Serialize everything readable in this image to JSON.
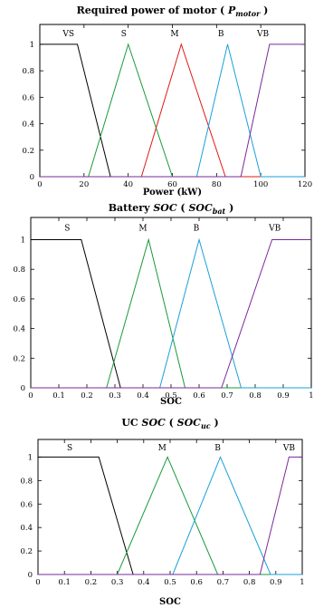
{
  "chart_data": [
    {
      "type": "line",
      "title": "Required power of motor (",
      "title_symbol": "P",
      "title_subscript": "motor",
      "title_close": ")",
      "xlabel": "Power (kW)",
      "xlim": [
        0,
        120
      ],
      "ylim": [
        0,
        1.15
      ],
      "xticks": [
        "0",
        "20",
        "40",
        "60",
        "80",
        "100",
        "120"
      ],
      "yticks": [
        "0",
        "0.2",
        "0.4",
        "0.6",
        "0.8",
        "1"
      ],
      "series": [
        {
          "name": "VS",
          "color": "#000000",
          "x": [
            0,
            17,
            32,
            120
          ],
          "y": [
            1,
            1,
            0,
            0
          ]
        },
        {
          "name": "S",
          "color": "#1a9a3a",
          "x": [
            0,
            22,
            40,
            60,
            120
          ],
          "y": [
            0,
            0,
            1,
            0,
            0
          ]
        },
        {
          "name": "M",
          "color": "#e01818",
          "x": [
            0,
            46,
            64,
            84,
            120
          ],
          "y": [
            0,
            0,
            1,
            0,
            0
          ]
        },
        {
          "name": "B",
          "color": "#1aa0d8",
          "x": [
            0,
            71,
            85,
            100,
            120
          ],
          "y": [
            0,
            0,
            1,
            0,
            0
          ]
        },
        {
          "name": "VB",
          "color": "#7a2a9a",
          "x": [
            0,
            91,
            104,
            120
          ],
          "y": [
            0,
            0,
            1,
            1
          ]
        }
      ],
      "labels": [
        {
          "text": "VS",
          "x": 13,
          "y": 1.08
        },
        {
          "text": "S",
          "x": 38,
          "y": 1.08
        },
        {
          "text": "M",
          "x": 61,
          "y": 1.08
        },
        {
          "text": "B",
          "x": 82,
          "y": 1.08
        },
        {
          "text": "VB",
          "x": 101,
          "y": 1.08
        }
      ]
    },
    {
      "type": "line",
      "title": "Battery",
      "title_symbol": "SOC",
      "title_paren": "(",
      "title_symbol2": "SOC",
      "title_subscript": "bat",
      "title_close": ")",
      "xlabel": "SOC",
      "xlim": [
        0,
        1
      ],
      "ylim": [
        0,
        1.15
      ],
      "xticks": [
        "0",
        "0.1",
        "0.2",
        "0.3",
        "0.4",
        "0.5",
        "0.6",
        "0.7",
        "0.8",
        "0.9",
        "1"
      ],
      "yticks": [
        "0",
        "0.2",
        "0.4",
        "0.6",
        "0.8",
        "1"
      ],
      "series": [
        {
          "name": "S",
          "color": "#000000",
          "x": [
            0,
            0.18,
            0.32,
            1
          ],
          "y": [
            1,
            1,
            0,
            0
          ]
        },
        {
          "name": "M",
          "color": "#1a9a3a",
          "x": [
            0,
            0.27,
            0.42,
            0.55,
            1
          ],
          "y": [
            0,
            0,
            1,
            0,
            0
          ]
        },
        {
          "name": "B",
          "color": "#1aa0d8",
          "x": [
            0,
            0.46,
            0.6,
            0.75,
            1
          ],
          "y": [
            0,
            0,
            1,
            0,
            0
          ]
        },
        {
          "name": "VB",
          "color": "#7a2a9a",
          "x": [
            0,
            0.68,
            0.86,
            1
          ],
          "y": [
            0,
            0,
            1,
            1
          ]
        }
      ],
      "labels": [
        {
          "text": "S",
          "x": 0.13,
          "y": 1.08
        },
        {
          "text": "M",
          "x": 0.4,
          "y": 1.08
        },
        {
          "text": "B",
          "x": 0.59,
          "y": 1.08
        },
        {
          "text": "VB",
          "x": 0.87,
          "y": 1.08
        }
      ]
    },
    {
      "type": "line",
      "title": "UC",
      "title_symbol": "SOC",
      "title_paren": "(",
      "title_symbol2": "SOC",
      "title_subscript": "uc",
      "title_close": ")",
      "xlabel": "SOC",
      "xlim": [
        0,
        1
      ],
      "ylim": [
        0,
        1.15
      ],
      "xticks": [
        "0",
        "0.1",
        "0.2",
        "0.3",
        "0.4",
        "0.5",
        "0.6",
        "0.7",
        "0.8",
        "0.9",
        "1"
      ],
      "yticks": [
        "0",
        "0.2",
        "0.4",
        "0.6",
        "0.8",
        "1"
      ],
      "series": [
        {
          "name": "S",
          "color": "#000000",
          "x": [
            0,
            0.23,
            0.36,
            1
          ],
          "y": [
            1,
            1,
            0,
            0
          ]
        },
        {
          "name": "M",
          "color": "#1a9a3a",
          "x": [
            0,
            0.3,
            0.49,
            0.68,
            1
          ],
          "y": [
            0,
            0,
            1,
            0,
            0
          ]
        },
        {
          "name": "B",
          "color": "#1aa0d8",
          "x": [
            0,
            0.51,
            0.69,
            0.88,
            1
          ],
          "y": [
            0,
            0,
            1,
            0,
            0
          ]
        },
        {
          "name": "VB",
          "color": "#7a2a9a",
          "x": [
            0,
            0.84,
            0.95,
            1
          ],
          "y": [
            0,
            0,
            1,
            1
          ]
        }
      ],
      "labels": [
        {
          "text": "S",
          "x": 0.12,
          "y": 1.08
        },
        {
          "text": "M",
          "x": 0.47,
          "y": 1.08
        },
        {
          "text": "B",
          "x": 0.68,
          "y": 1.08
        },
        {
          "text": "VB",
          "x": 0.95,
          "y": 1.08
        }
      ]
    }
  ]
}
